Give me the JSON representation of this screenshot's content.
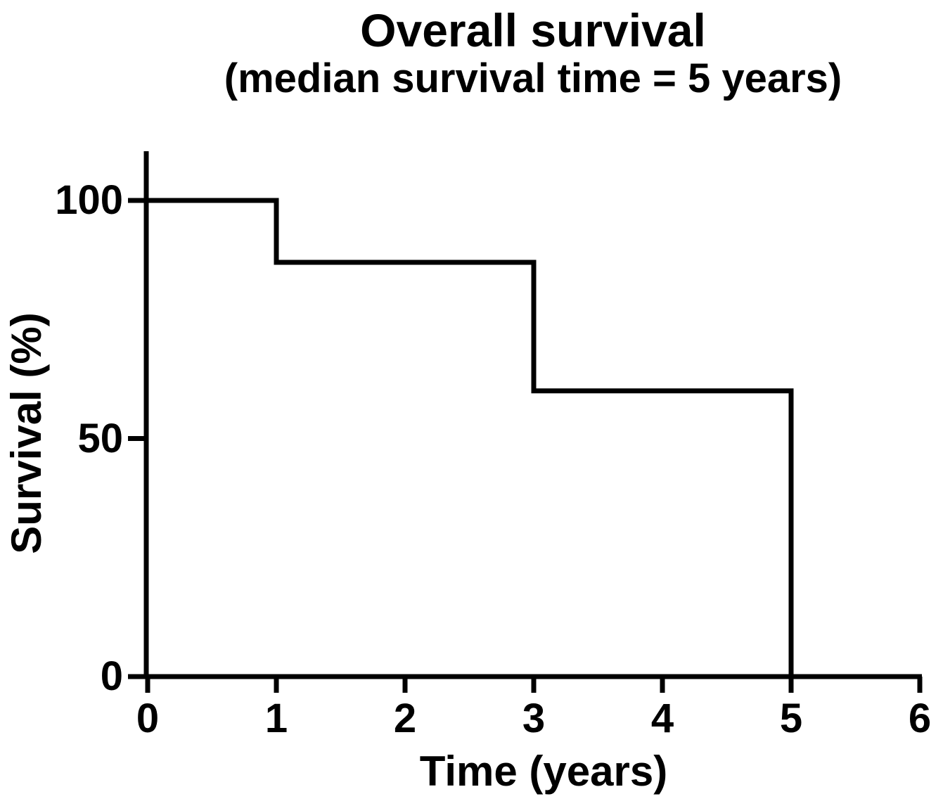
{
  "figure": {
    "title": "Overall survival",
    "subtitle": "(median survival time = 5 years)",
    "xlabel": "Time (years)",
    "ylabel": "Survival (%)"
  },
  "colors": {
    "line": "#000000",
    "text": "#000000",
    "background": "#ffffff"
  },
  "chart_data": {
    "type": "line",
    "subtype": "kaplan-meier-step",
    "title": "Overall survival",
    "subtitle": "(median survival time = 5 years)",
    "xlabel": "Time (years)",
    "ylabel": "Survival (%)",
    "xlim": [
      0,
      6
    ],
    "ylim": [
      0,
      100
    ],
    "x_ticks": [
      0,
      1,
      2,
      3,
      4,
      5,
      6
    ],
    "y_ticks": [
      0,
      50,
      100
    ],
    "grid": false,
    "legend": null,
    "median_survival_years": 5,
    "series": [
      {
        "name": "Overall survival",
        "color": "#000000",
        "points": [
          {
            "x": 0,
            "y": 100
          },
          {
            "x": 1,
            "y": 100
          },
          {
            "x": 1,
            "y": 87
          },
          {
            "x": 3,
            "y": 87
          },
          {
            "x": 3,
            "y": 60
          },
          {
            "x": 5,
            "y": 60
          },
          {
            "x": 5,
            "y": 0
          }
        ]
      }
    ],
    "plateaus": [
      {
        "from_year": 0,
        "to_year": 1,
        "survival_pct": 100
      },
      {
        "from_year": 1,
        "to_year": 3,
        "survival_pct": 87
      },
      {
        "from_year": 3,
        "to_year": 5,
        "survival_pct": 60
      }
    ],
    "drop_events": [
      {
        "time_years": 1,
        "survival_after_pct": 87
      },
      {
        "time_years": 3,
        "survival_after_pct": 60
      },
      {
        "time_years": 5,
        "survival_after_pct": 0
      }
    ]
  }
}
